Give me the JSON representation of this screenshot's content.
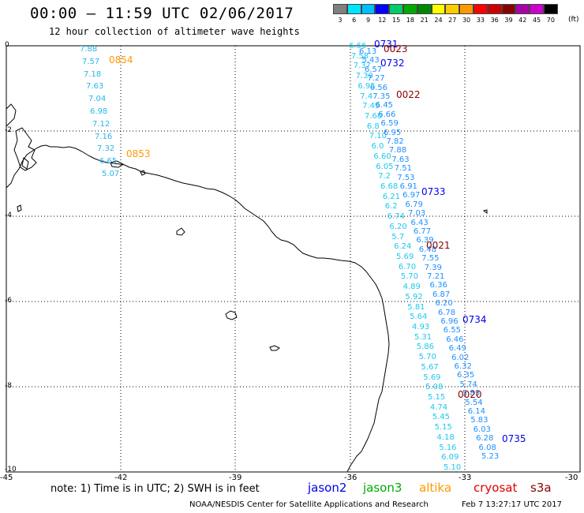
{
  "title": "00:00 – 11:59 UTC 02/06/2017",
  "subtitle": "12 hour collection of altimeter wave heights",
  "colorbar": {
    "unit": "(ft)",
    "labels": [
      "3",
      "6",
      "9",
      "12",
      "15",
      "18",
      "21",
      "24",
      "27",
      "30",
      "33",
      "36",
      "39",
      "42",
      "45",
      "70"
    ],
    "colors": [
      "#808080",
      "#00e5ff",
      "#00bfff",
      "#0000ff",
      "#00cc66",
      "#00aa00",
      "#008800",
      "#ffff00",
      "#ffcc00",
      "#ff9900",
      "#ff0000",
      "#cc0000",
      "#880000",
      "#aa00aa",
      "#cc00cc",
      "#000000"
    ]
  },
  "axes": {
    "x_ticks": [
      "-45",
      "-42",
      "-39",
      "-36",
      "-33",
      "-30"
    ],
    "y_ticks": [
      "0",
      "-2",
      "-4",
      "-6",
      "-8",
      "-10"
    ]
  },
  "note": "note:  1) Time is in UTC;  2) SWH is in feet",
  "legend": [
    {
      "name": "jason2",
      "color": "#0000ee"
    },
    {
      "name": "jason3",
      "color": "#00aa00"
    },
    {
      "name": "altika",
      "color": "#ff9900"
    },
    {
      "name": "cryosat",
      "color": "#dd0000"
    },
    {
      "name": "s3a",
      "color": "#880000"
    }
  ],
  "credit": "NOAA/NESDIS Center for Satellite Applications and Research",
  "timestamp": "Feb  7 13:27:17 UTC 2017",
  "pass_labels": [
    {
      "text": "0854",
      "color": "#ff9900"
    },
    {
      "text": "0853",
      "color": "#ff9900"
    },
    {
      "text": "0731",
      "color": "#0000ee"
    },
    {
      "text": "0023",
      "color": "#880000"
    },
    {
      "text": "0732",
      "color": "#0000ee"
    },
    {
      "text": "0022",
      "color": "#880000"
    },
    {
      "text": "0733",
      "color": "#0000ee"
    },
    {
      "text": "0021",
      "color": "#880000"
    },
    {
      "text": "0734",
      "color": "#0000ee"
    },
    {
      "text": "0020",
      "color": "#880000"
    },
    {
      "text": "0735",
      "color": "#0000ee"
    }
  ],
  "track_altika": [
    "7.88",
    "7.57",
    "7.18",
    "7.63",
    "7.04",
    "6.98",
    "7.12",
    "7.16",
    "7.32",
    "6.65",
    "5.07"
  ],
  "track_left": [
    "6.66",
    "7.58",
    "7.37",
    "7.30",
    "6.95",
    "7.4",
    "7.49",
    "7.60",
    "6.8",
    "7.10",
    "6.0",
    "6.60",
    "6.05",
    "7.2",
    "6.68",
    "6.21",
    "6.2",
    "6.74",
    "6.20",
    "5.7",
    "6.24",
    "5.69",
    "6.70",
    "5.70",
    "4.89",
    "5.92",
    "5.81",
    "5.64",
    "4.93",
    "5.31",
    "5.86",
    "5.70",
    "5.67",
    "5.69",
    "5.08",
    "5.15",
    "4.74",
    "5.45",
    "5.15",
    "4.18",
    "5.16",
    "6.09",
    "5.10"
  ],
  "track_right": [
    "6.13",
    "5.43",
    "6.57",
    "7.27",
    "6.56",
    "7.35",
    "6.45",
    "6.66",
    "6.59",
    "6.95",
    "7.82",
    "7.88",
    "7.63",
    "7.51",
    "7.53",
    "6.91",
    "6.97",
    "6.79",
    "7.03",
    "6.43",
    "6.77",
    "6.39",
    "6.48",
    "7.55",
    "7.39",
    "7.21",
    "6.36",
    "6.87",
    "6.20",
    "6.78",
    "6.96",
    "6.55",
    "6.46",
    "6.49",
    "6.02",
    "6.32",
    "6.35",
    "5.74",
    "5.85",
    "5.54",
    "6.14",
    "5.83",
    "6.03",
    "6.28",
    "6.08",
    "5.23"
  ]
}
